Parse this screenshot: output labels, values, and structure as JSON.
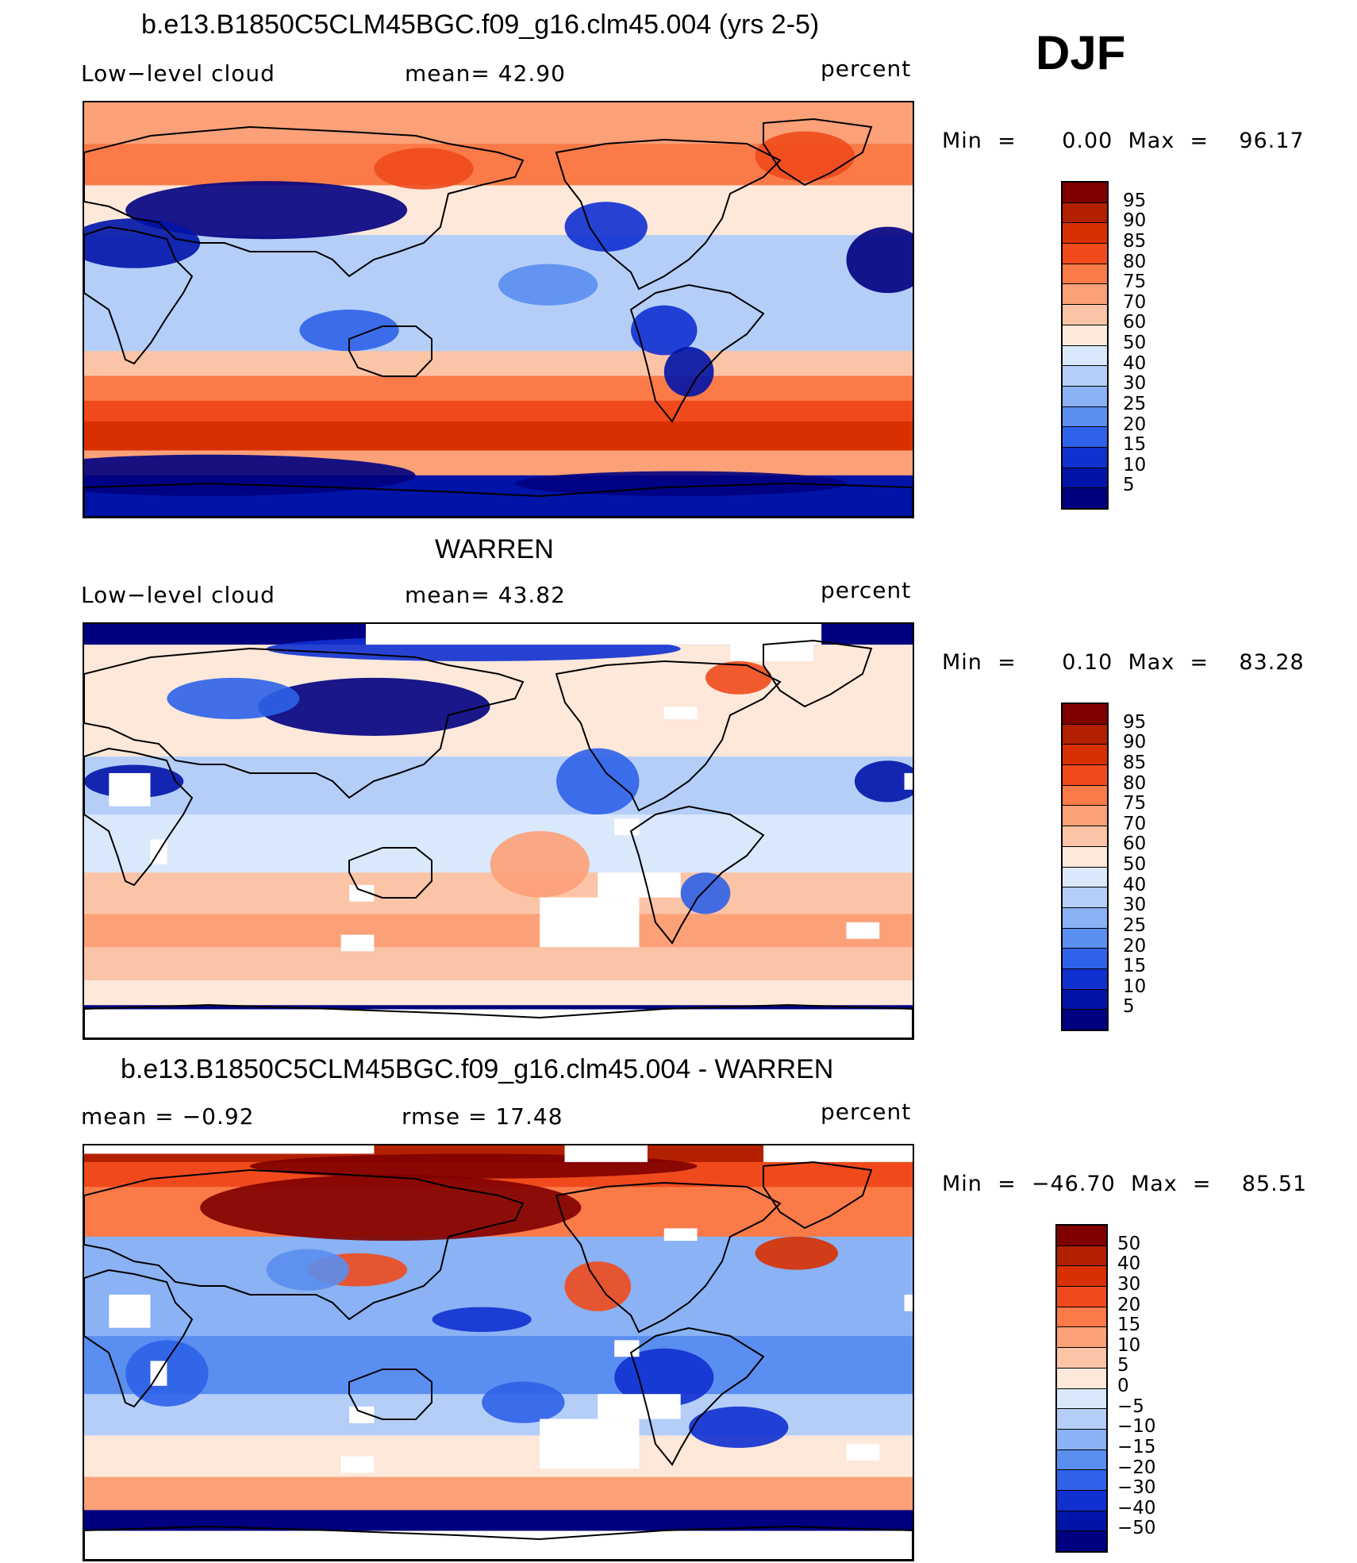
{
  "season": "DJF",
  "panels": [
    {
      "title": "b.e13.B1850C5CLM45BGC.f09_g16.clm45.004 (yrs 2-5)",
      "left_label": "Low−level  cloud",
      "mid_label": "mean=   42.90",
      "units": "percent",
      "minmax": "Min  =      0.00  Max  =    96.17",
      "colorbar": [
        "95",
        "90",
        "85",
        "80",
        "75",
        "70",
        "60",
        "50",
        "40",
        "30",
        "25",
        "20",
        "15",
        "10",
        "5"
      ],
      "variant": "model"
    },
    {
      "title": "WARREN",
      "left_label": "Low−level  cloud",
      "mid_label": "mean=   43.82",
      "units": "percent",
      "minmax": "Min  =      0.10  Max  =    83.28",
      "colorbar": [
        "95",
        "90",
        "85",
        "80",
        "75",
        "70",
        "60",
        "50",
        "40",
        "30",
        "25",
        "20",
        "15",
        "10",
        "5"
      ],
      "variant": "obs"
    },
    {
      "title": "b.e13.B1850C5CLM45BGC.f09_g16.clm45.004 - WARREN",
      "left_label": "mean  =    −0.92",
      "mid_label": "rmse  =    17.48",
      "units": "percent",
      "minmax": "Min  =  −46.70  Max  =    85.51",
      "colorbar": [
        "50",
        "40",
        "30",
        "20",
        "15",
        "10",
        "5",
        "0",
        "−5",
        "−10",
        "−15",
        "−20",
        "−30",
        "−40",
        "−50"
      ],
      "variant": "diff"
    }
  ],
  "colors": {
    "palette16": [
      "#800000",
      "#b22000",
      "#d83000",
      "#f04a1c",
      "#fa7a48",
      "#fca078",
      "#fbc4a6",
      "#fde8da",
      "#dae8fc",
      "#b4cef8",
      "#8ab2f4",
      "#5a8ef0",
      "#2e62e8",
      "#1030d0",
      "#0014a8",
      "#000080"
    ],
    "coast": "#000000"
  },
  "chart_data": [
    {
      "type": "heatmap",
      "title": "b.e13.B1850C5CLM45BGC.f09_g16.clm45.004 (yrs 2-5)",
      "variable": "Low-level cloud",
      "units": "percent",
      "mean": 42.9,
      "min": 0.0,
      "max": 96.17,
      "contour_levels": [
        5,
        10,
        15,
        20,
        25,
        30,
        40,
        50,
        60,
        70,
        75,
        80,
        85,
        90,
        95
      ],
      "x_extent_deg": [
        0,
        360
      ],
      "y_extent_deg": [
        -90,
        90
      ]
    },
    {
      "type": "heatmap",
      "title": "WARREN",
      "variable": "Low-level cloud",
      "units": "percent",
      "mean": 43.82,
      "min": 0.1,
      "max": 83.28,
      "contour_levels": [
        5,
        10,
        15,
        20,
        25,
        30,
        40,
        50,
        60,
        70,
        75,
        80,
        85,
        90,
        95
      ],
      "x_extent_deg": [
        0,
        360
      ],
      "y_extent_deg": [
        -90,
        90
      ]
    },
    {
      "type": "heatmap",
      "title": "b.e13.B1850C5CLM45BGC.f09_g16.clm45.004 - WARREN",
      "variable": "Low-level cloud difference",
      "units": "percent",
      "mean": -0.92,
      "rmse": 17.48,
      "min": -46.7,
      "max": 85.51,
      "contour_levels": [
        -50,
        -40,
        -30,
        -20,
        -15,
        -10,
        -5,
        0,
        5,
        10,
        15,
        20,
        30,
        40,
        50
      ],
      "x_extent_deg": [
        0,
        360
      ],
      "y_extent_deg": [
        -90,
        90
      ]
    }
  ]
}
